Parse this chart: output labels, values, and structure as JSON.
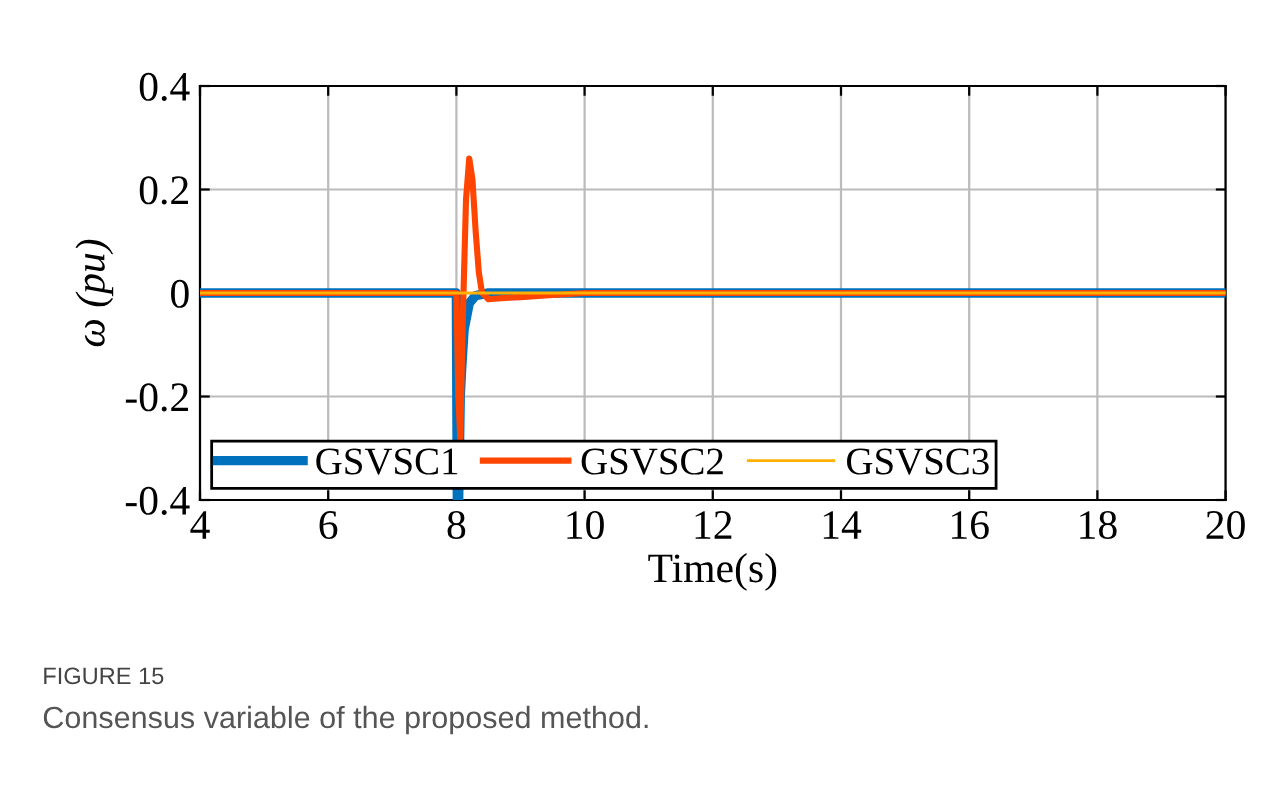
{
  "chart_data": {
    "type": "line",
    "xlabel": "Time(s)",
    "ylabel": "ω (pu)",
    "xlim": [
      4,
      20
    ],
    "ylim": [
      -0.4,
      0.4
    ],
    "xticks": [
      4,
      6,
      8,
      10,
      12,
      14,
      16,
      18,
      20
    ],
    "yticks": [
      0.4,
      0.2,
      0,
      -0.2,
      -0.4
    ],
    "grid": true,
    "legend": "bottom left",
    "line_style": "solid",
    "marker": "none",
    "series": [
      {
        "name": "GSVSC1",
        "color": "#0072bd",
        "x": [
          4,
          8.0,
          8.015,
          8.035,
          8.06,
          8.08,
          8.12,
          8.2,
          8.3,
          8.5,
          20
        ],
        "values": [
          0,
          0,
          -0.4,
          -0.4,
          -0.2,
          -0.15,
          -0.07,
          -0.02,
          -0.005,
          0,
          0
        ]
      },
      {
        "name": "GSVSC2",
        "color": "#ff4500",
        "x": [
          4,
          8.0,
          8.03,
          8.06,
          8.1,
          8.15,
          8.2,
          8.25,
          8.3,
          8.35,
          8.4,
          8.5,
          8.7,
          9,
          9.5,
          10,
          20
        ],
        "values": [
          0,
          0,
          -0.2,
          -0.28,
          -0.05,
          0.18,
          0.26,
          0.22,
          0.12,
          0.04,
          0,
          -0.012,
          -0.01,
          -0.008,
          -0.004,
          0,
          0
        ]
      },
      {
        "name": "GSVSC3",
        "color": "#ffb000",
        "x": [
          4,
          20
        ],
        "values": [
          0,
          0
        ]
      }
    ],
    "annotations": [
      "FIGURE 15",
      "Consensus variable of the proposed method."
    ]
  }
}
